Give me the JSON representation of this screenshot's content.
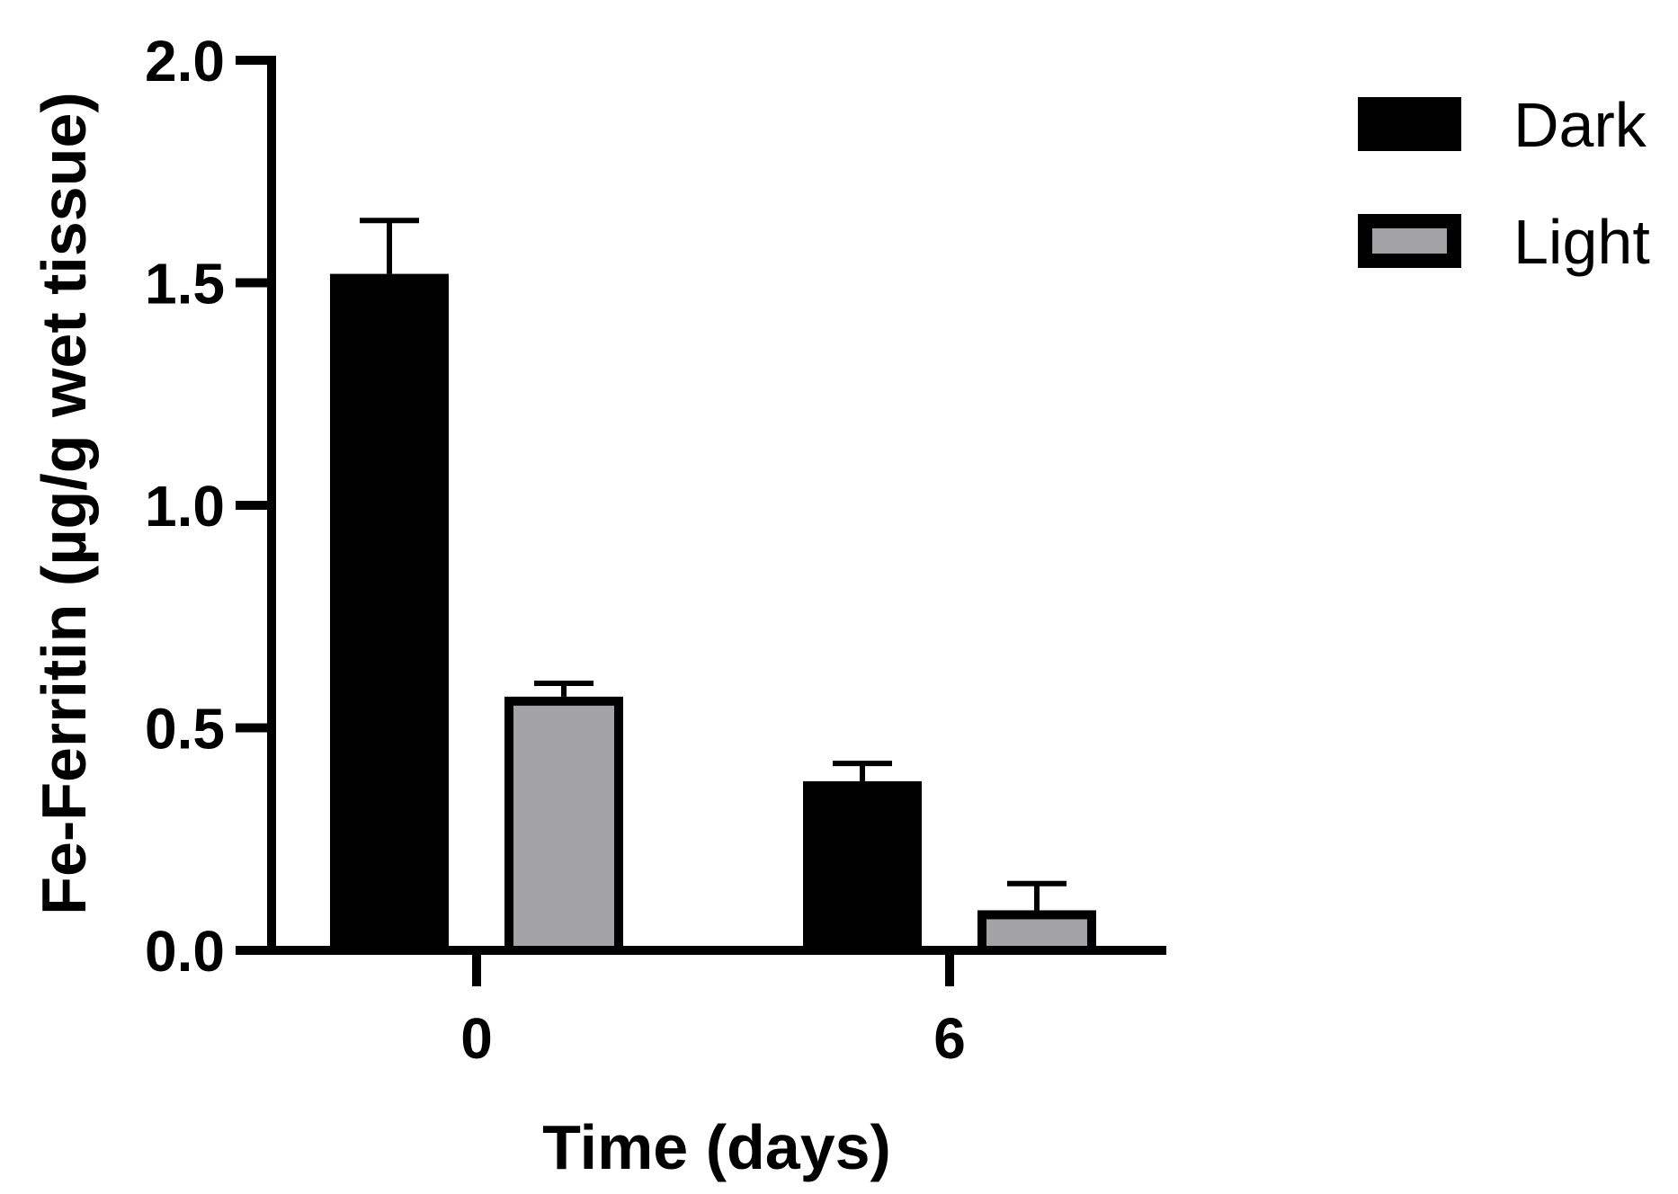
{
  "chart_data": {
    "type": "bar",
    "title": "",
    "xlabel": "Time (days)",
    "ylabel": "Fe-Ferritin (µg/g wet tissue)",
    "categories": [
      "0",
      "6"
    ],
    "ylim": [
      0,
      2.0
    ],
    "yticks": [
      "0.0",
      "0.5",
      "1.0",
      "1.5",
      "2.0"
    ],
    "ytick_values": [
      0,
      0.5,
      1.0,
      1.5,
      2.0
    ],
    "grid": false,
    "legend_position": "top-right",
    "series": [
      {
        "name": "Dark",
        "color": "#000000",
        "values": [
          1.52,
          0.38
        ],
        "errors": [
          0.12,
          0.04
        ]
      },
      {
        "name": "Light",
        "color": "#a3a3a6",
        "values": [
          0.57,
          0.09
        ],
        "errors": [
          0.03,
          0.06
        ]
      }
    ]
  }
}
